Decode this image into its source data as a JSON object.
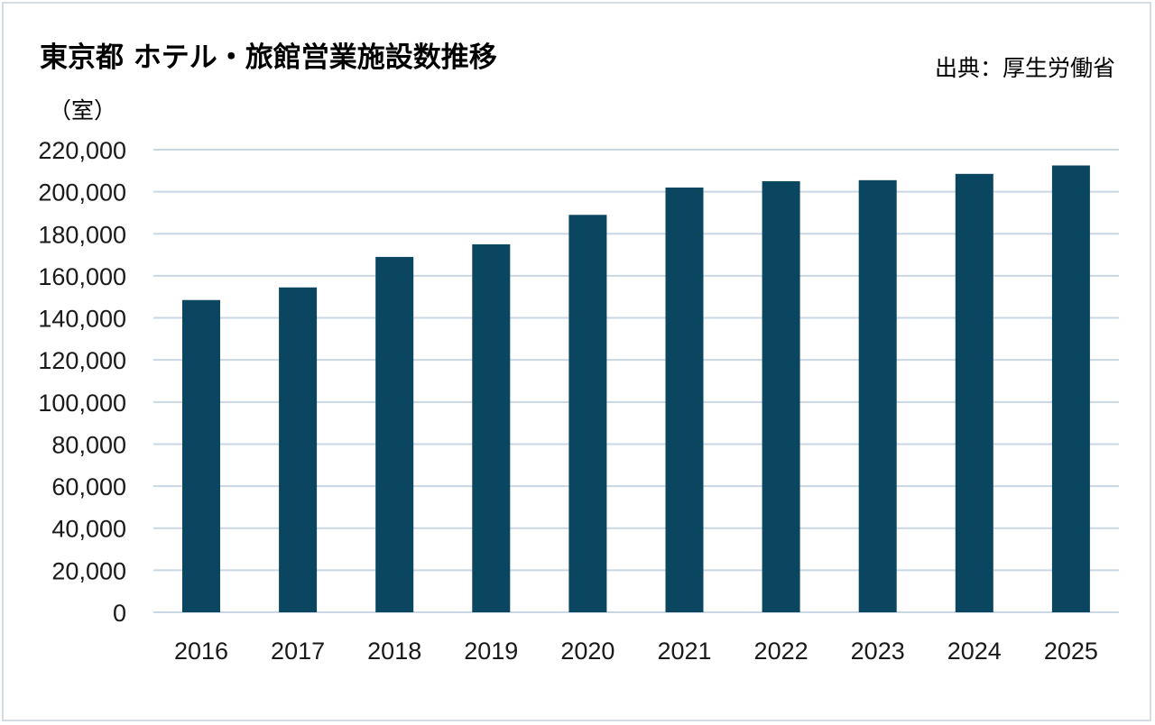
{
  "title": "東京都 ホテル・旅館営業施設数推移",
  "source": "出典：厚生労働省",
  "unit_label": "（室）",
  "colors": {
    "bar": "#0b4660",
    "grid": "#c9d6e3",
    "frame": "#d4dbe3"
  },
  "chart_data": {
    "type": "bar",
    "title": "東京都 ホテル・旅館営業施設数推移",
    "ylabel": "（室）",
    "xlabel": "",
    "categories": [
      "2016",
      "2017",
      "2018",
      "2019",
      "2020",
      "2021",
      "2022",
      "2023",
      "2024",
      "2025"
    ],
    "values": [
      148500,
      154500,
      169000,
      175000,
      189000,
      202000,
      205000,
      205500,
      208500,
      212500
    ],
    "ylim": [
      0,
      220000
    ],
    "yticks": [
      0,
      20000,
      40000,
      60000,
      80000,
      100000,
      120000,
      140000,
      160000,
      180000,
      200000,
      220000
    ],
    "ytick_labels": [
      "0",
      "20,000",
      "40,000",
      "60,000",
      "80,000",
      "100,000",
      "120,000",
      "140,000",
      "160,000",
      "180,000",
      "200,000",
      "220,000"
    ],
    "grid": true,
    "legend": "none"
  }
}
